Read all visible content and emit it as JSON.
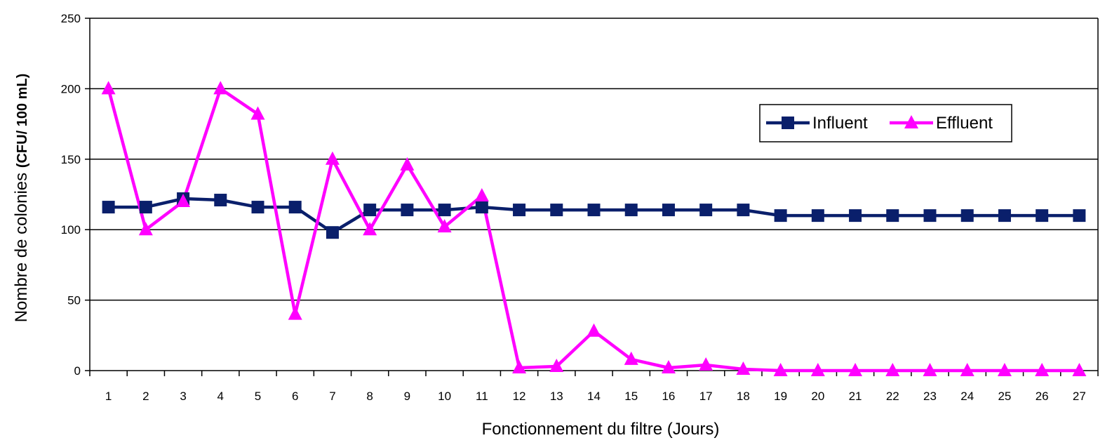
{
  "chart_data": {
    "type": "line",
    "title": "",
    "xlabel": "Fonctionnement du filtre (Jours)",
    "ylabel_main": "Nombre de colonies ",
    "ylabel_unit": "(CFU/ 100 mL)",
    "ylim": [
      0,
      250
    ],
    "yticks": [
      0,
      50,
      100,
      150,
      200,
      250
    ],
    "x": [
      "1",
      "2",
      "3",
      "4",
      "5",
      "6",
      "7",
      "8",
      "9",
      "10",
      "11",
      "12",
      "13",
      "14",
      "15",
      "16",
      "17",
      "18",
      "19",
      "20",
      "21",
      "22",
      "23",
      "24",
      "25",
      "26",
      "27"
    ],
    "grid": "horizontal",
    "legend_position": "right",
    "series": [
      {
        "name": "Influent",
        "color": "#0a1f6b",
        "marker": "square",
        "values": [
          116,
          116,
          122,
          121,
          116,
          116,
          98,
          114,
          114,
          114,
          116,
          114,
          114,
          114,
          114,
          114,
          114,
          114,
          110,
          110,
          110,
          110,
          110,
          110,
          110,
          110,
          110
        ]
      },
      {
        "name": "Effluent",
        "color": "#ff00ff",
        "marker": "triangle",
        "values": [
          200,
          100,
          120,
          200,
          182,
          40,
          150,
          100,
          146,
          102,
          124,
          2,
          3,
          28,
          8,
          2,
          4,
          1,
          0,
          0,
          0,
          0,
          0,
          0,
          0,
          0,
          0
        ]
      }
    ]
  }
}
